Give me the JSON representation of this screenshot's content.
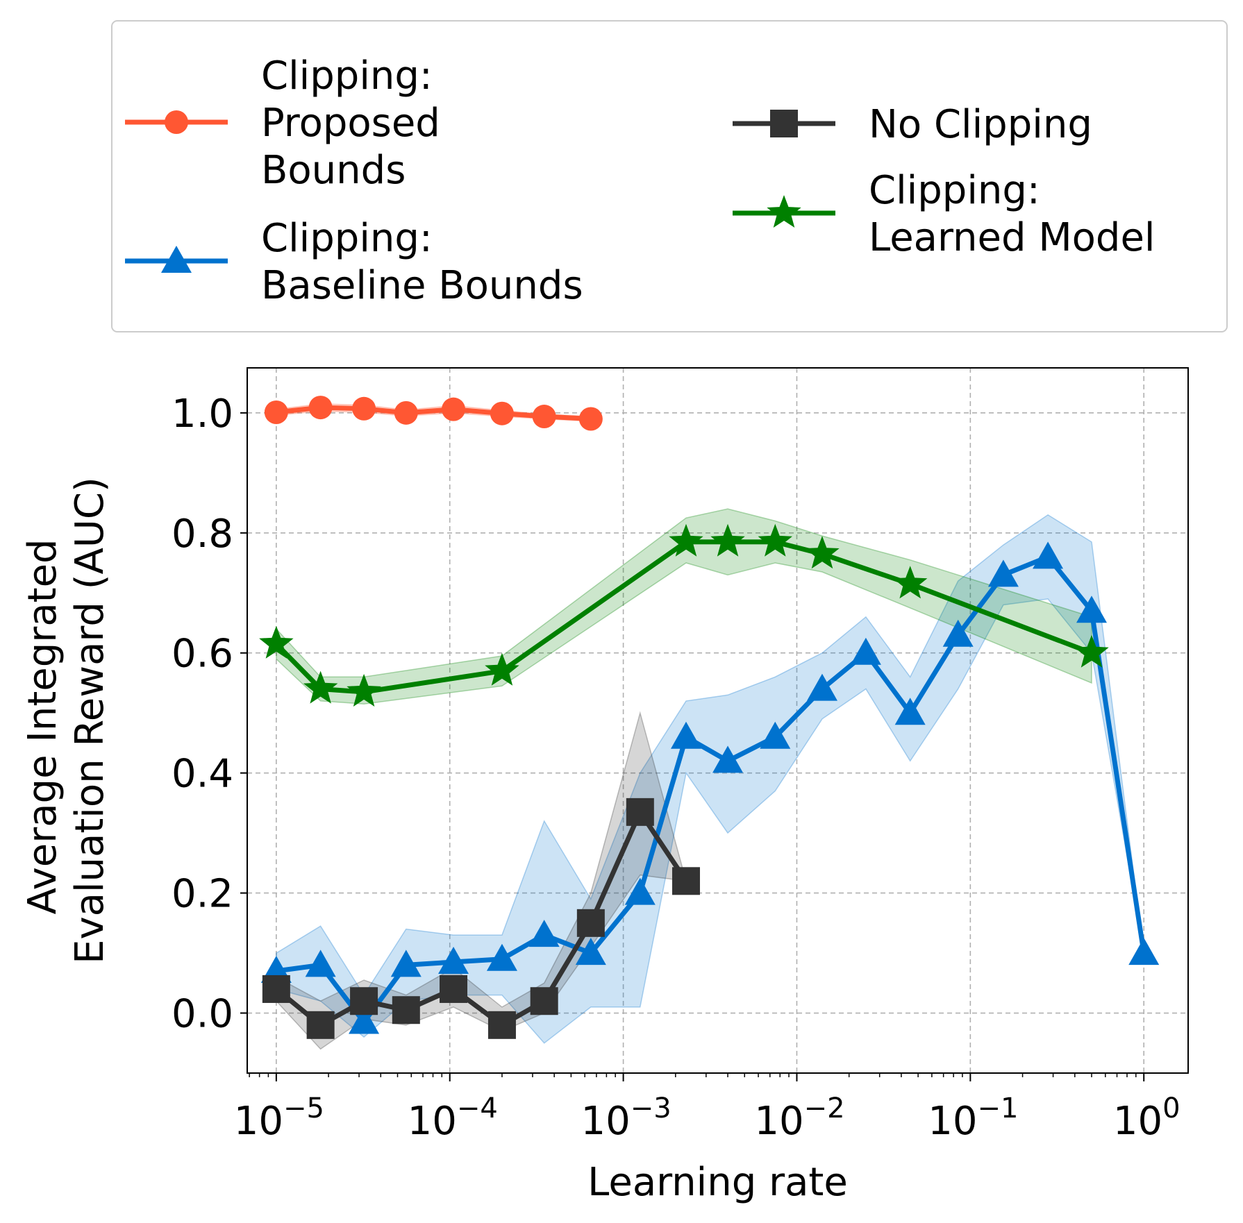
{
  "chart_data": {
    "type": "line",
    "xlabel": "Learning rate",
    "ylabel_lines": [
      "Average Integrated",
      "Evaluation Reward (AUC)"
    ],
    "xscale": "log",
    "xlim": [
      6.8e-06,
      1.8
    ],
    "ylim": [
      -0.1,
      1.075
    ],
    "grid": true,
    "legend_position": "top (outside plot, 2 columns)",
    "x_ticks": [
      {
        "value": 1e-05,
        "base": "10",
        "exp": "−5"
      },
      {
        "value": 0.0001,
        "base": "10",
        "exp": "−4"
      },
      {
        "value": 0.001,
        "base": "10",
        "exp": "−3"
      },
      {
        "value": 0.01,
        "base": "10",
        "exp": "−2"
      },
      {
        "value": 0.1,
        "base": "10",
        "exp": "−1"
      },
      {
        "value": 1,
        "base": "10",
        "exp": "0"
      }
    ],
    "y_ticks": [
      {
        "value": 0.0,
        "label": "0.0"
      },
      {
        "value": 0.2,
        "label": "0.2"
      },
      {
        "value": 0.4,
        "label": "0.4"
      },
      {
        "value": 0.6,
        "label": "0.6"
      },
      {
        "value": 0.8,
        "label": "0.8"
      },
      {
        "value": 1.0,
        "label": "1.0"
      }
    ],
    "series": [
      {
        "name": "Clipping: Proposed Bounds",
        "legend_lines": [
          "Clipping:",
          "Proposed",
          "Bounds"
        ],
        "color": "#FF5733",
        "marker": "circle",
        "x": [
          1e-05,
          1.8e-05,
          3.2e-05,
          5.6e-05,
          0.000105,
          0.0002,
          0.00035,
          0.00065
        ],
        "y": [
          1.001,
          1.009,
          1.007,
          1.0,
          1.006,
          0.999,
          0.994,
          0.99
        ],
        "lower": [
          0.996,
          1.003,
          1.001,
          0.995,
          1.0,
          0.994,
          0.99,
          0.986
        ],
        "upper": [
          1.006,
          1.015,
          1.013,
          1.005,
          1.012,
          1.004,
          0.998,
          0.994
        ]
      },
      {
        "name": "Clipping: Baseline Bounds",
        "legend_lines": [
          "Clipping:",
          "Baseline Bounds"
        ],
        "color": "#0072CE",
        "marker": "triangle",
        "x": [
          1e-05,
          1.8e-05,
          3.2e-05,
          5.6e-05,
          0.000105,
          0.0002,
          0.00035,
          0.00065,
          0.00125,
          0.0023,
          0.004,
          0.0075,
          0.014,
          0.025,
          0.045,
          0.085,
          0.155,
          0.28,
          0.5,
          1.0
        ],
        "y": [
          0.07,
          0.08,
          -0.015,
          0.08,
          0.085,
          0.09,
          0.13,
          0.1,
          0.2,
          0.46,
          0.42,
          0.46,
          0.54,
          0.6,
          0.5,
          0.63,
          0.73,
          0.76,
          0.67,
          0.1
        ],
        "lower": [
          0.04,
          0.02,
          -0.04,
          0.02,
          0.03,
          0.03,
          -0.05,
          0.01,
          0.01,
          0.4,
          0.3,
          0.37,
          0.49,
          0.54,
          0.42,
          0.54,
          0.68,
          0.69,
          0.6,
          0.1
        ],
        "upper": [
          0.1,
          0.145,
          0.03,
          0.14,
          0.13,
          0.13,
          0.32,
          0.19,
          0.4,
          0.52,
          0.53,
          0.56,
          0.6,
          0.66,
          0.56,
          0.72,
          0.78,
          0.83,
          0.785,
          0.1
        ]
      },
      {
        "name": "No Clipping",
        "legend_lines": [
          "No Clipping"
        ],
        "color": "#333333",
        "marker": "square",
        "x": [
          1e-05,
          1.8e-05,
          3.2e-05,
          5.6e-05,
          0.000105,
          0.0002,
          0.00035,
          0.00065,
          0.00125,
          0.0023
        ],
        "y": [
          0.04,
          -0.02,
          0.02,
          0.005,
          0.04,
          -0.02,
          0.02,
          0.15,
          0.335,
          0.22
        ],
        "lower": [
          0.02,
          -0.06,
          -0.01,
          -0.02,
          0.01,
          -0.03,
          0.0,
          0.11,
          0.23,
          0.22
        ],
        "upper": [
          0.06,
          0.02,
          0.055,
          0.03,
          0.075,
          0.01,
          0.05,
          0.2,
          0.5,
          0.22
        ]
      },
      {
        "name": "Clipping: Learned Model",
        "legend_lines": [
          "Clipping:",
          "Learned Model"
        ],
        "color": "#008000",
        "marker": "star",
        "x": [
          1e-05,
          1.8e-05,
          3.2e-05,
          0.0002,
          0.0023,
          0.004,
          0.0075,
          0.014,
          0.045,
          0.5
        ],
        "y": [
          0.615,
          0.54,
          0.535,
          0.57,
          0.785,
          0.785,
          0.785,
          0.765,
          0.715,
          0.6
        ],
        "lower": [
          0.59,
          0.52,
          0.515,
          0.545,
          0.75,
          0.73,
          0.75,
          0.735,
          0.675,
          0.55
        ],
        "upper": [
          0.64,
          0.56,
          0.56,
          0.595,
          0.825,
          0.84,
          0.82,
          0.795,
          0.755,
          0.66
        ]
      }
    ]
  }
}
